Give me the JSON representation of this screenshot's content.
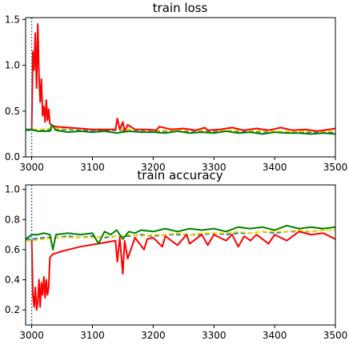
{
  "chart_data": [
    {
      "type": "line",
      "title": "train loss",
      "xlabel": "",
      "ylabel": "",
      "xlim": [
        2990,
        3500
      ],
      "ylim": [
        0.0,
        1.52
      ],
      "xticks": [
        3000,
        3100,
        3200,
        3300,
        3400,
        3500
      ],
      "yticks": [
        0.0,
        0.5,
        1.0,
        1.5
      ],
      "ytick_labels": [
        "0.0",
        "0.5",
        "1.0",
        "1.5"
      ],
      "vline": {
        "x": 3000,
        "color": "#1f77b4",
        "style": "dotted"
      },
      "legend": "none",
      "grid": false,
      "series": [
        {
          "color": "#1f77b4",
          "style": "dashed",
          "x": [
            2990,
            3000,
            3010,
            3030,
            3050,
            3100,
            3150,
            3200,
            3250,
            3300,
            3350,
            3400,
            3450,
            3500
          ],
          "y": [
            0.29,
            0.29,
            0.29,
            0.3,
            0.3,
            0.29,
            0.29,
            0.28,
            0.28,
            0.28,
            0.28,
            0.27,
            0.27,
            0.27
          ]
        },
        {
          "color": "#ffd700",
          "style": "dashed",
          "x": [
            2990,
            3000,
            3010,
            3030,
            3050,
            3100,
            3150,
            3200,
            3250,
            3300,
            3350,
            3400,
            3450,
            3500
          ],
          "y": [
            0.3,
            0.3,
            0.3,
            0.31,
            0.31,
            0.3,
            0.3,
            0.29,
            0.29,
            0.29,
            0.29,
            0.28,
            0.28,
            0.28
          ]
        },
        {
          "color": "#ff0000",
          "style": "solid",
          "x": [
            3000,
            3002,
            3004,
            3006,
            3008,
            3010,
            3012,
            3014,
            3016,
            3018,
            3020,
            3022,
            3024,
            3026,
            3028,
            3030,
            3035,
            3040,
            3060,
            3080,
            3100,
            3120,
            3138,
            3141,
            3145,
            3150,
            3153,
            3158,
            3170,
            3190,
            3205,
            3210,
            3230,
            3250,
            3270,
            3285,
            3290,
            3310,
            3330,
            3350,
            3370,
            3390,
            3410,
            3430,
            3450,
            3470,
            3490,
            3500
          ],
          "y": [
            0.3,
            1.15,
            0.95,
            1.35,
            0.75,
            1.45,
            0.9,
            0.6,
            0.85,
            0.45,
            0.55,
            0.38,
            0.62,
            0.4,
            0.52,
            0.36,
            0.34,
            0.33,
            0.32,
            0.31,
            0.3,
            0.3,
            0.3,
            0.42,
            0.3,
            0.38,
            0.28,
            0.35,
            0.3,
            0.3,
            0.29,
            0.33,
            0.3,
            0.31,
            0.29,
            0.32,
            0.29,
            0.3,
            0.32,
            0.29,
            0.31,
            0.29,
            0.32,
            0.29,
            0.3,
            0.28,
            0.3,
            0.31
          ]
        },
        {
          "color": "#008000",
          "style": "solid",
          "x": [
            2990,
            3000,
            3010,
            3020,
            3030,
            3033,
            3040,
            3060,
            3080,
            3100,
            3120,
            3140,
            3160,
            3180,
            3200,
            3220,
            3240,
            3260,
            3280,
            3300,
            3320,
            3340,
            3360,
            3380,
            3400,
            3420,
            3440,
            3460,
            3480,
            3500
          ],
          "y": [
            0.3,
            0.3,
            0.28,
            0.28,
            0.28,
            0.35,
            0.29,
            0.27,
            0.28,
            0.27,
            0.28,
            0.26,
            0.28,
            0.27,
            0.27,
            0.26,
            0.28,
            0.26,
            0.27,
            0.26,
            0.28,
            0.26,
            0.27,
            0.25,
            0.27,
            0.26,
            0.26,
            0.25,
            0.26,
            0.25
          ]
        }
      ]
    },
    {
      "type": "line",
      "title": "train accuracy",
      "xlabel": "",
      "ylabel": "",
      "xlim": [
        2990,
        3500
      ],
      "ylim": [
        0.1,
        1.03
      ],
      "xticks": [
        3000,
        3100,
        3200,
        3300,
        3400,
        3500
      ],
      "yticks": [
        0.2,
        0.4,
        0.6,
        0.8,
        1.0
      ],
      "ytick_labels": [
        "0.2",
        "0.4",
        "0.6",
        "0.8",
        "1.0"
      ],
      "vline": {
        "x": 3000,
        "color": "#1f77b4",
        "style": "dotted"
      },
      "legend": "none",
      "grid": false,
      "series": [
        {
          "color": "#1f77b4",
          "style": "dashed",
          "x": [
            2990,
            3000,
            3020,
            3040,
            3060,
            3080,
            3100,
            3120,
            3140,
            3160,
            3180,
            3200,
            3220,
            3240,
            3260,
            3280,
            3300,
            3320,
            3340,
            3360,
            3380,
            3400,
            3420,
            3440,
            3460,
            3480,
            3500
          ],
          "y": [
            0.67,
            0.67,
            0.68,
            0.68,
            0.69,
            0.68,
            0.69,
            0.68,
            0.69,
            0.69,
            0.7,
            0.69,
            0.7,
            0.7,
            0.7,
            0.7,
            0.71,
            0.7,
            0.71,
            0.71,
            0.72,
            0.71,
            0.72,
            0.72,
            0.72,
            0.73,
            0.73
          ]
        },
        {
          "color": "#ffd700",
          "style": "dashed",
          "x": [
            2990,
            3000,
            3020,
            3040,
            3060,
            3080,
            3100,
            3120,
            3140,
            3160,
            3180,
            3200,
            3220,
            3240,
            3260,
            3280,
            3300,
            3320,
            3340,
            3360,
            3380,
            3400,
            3420,
            3440,
            3460,
            3480,
            3500
          ],
          "y": [
            0.66,
            0.66,
            0.67,
            0.68,
            0.68,
            0.68,
            0.68,
            0.69,
            0.69,
            0.7,
            0.69,
            0.7,
            0.7,
            0.71,
            0.7,
            0.71,
            0.71,
            0.71,
            0.72,
            0.71,
            0.72,
            0.72,
            0.72,
            0.73,
            0.72,
            0.73,
            0.73
          ]
        },
        {
          "color": "#ff0000",
          "style": "solid",
          "x": [
            3000,
            3002,
            3004,
            3006,
            3008,
            3010,
            3012,
            3014,
            3016,
            3018,
            3020,
            3022,
            3024,
            3026,
            3028,
            3030,
            3035,
            3050,
            3080,
            3110,
            3138,
            3141,
            3145,
            3150,
            3153,
            3158,
            3170,
            3185,
            3190,
            3200,
            3215,
            3220,
            3240,
            3255,
            3260,
            3280,
            3290,
            3300,
            3320,
            3330,
            3340,
            3350,
            3360,
            3370,
            3380,
            3390,
            3400,
            3420,
            3440,
            3460,
            3480,
            3500
          ],
          "y": [
            0.67,
            0.3,
            0.22,
            0.35,
            0.2,
            0.25,
            0.4,
            0.22,
            0.38,
            0.3,
            0.42,
            0.28,
            0.4,
            0.3,
            0.35,
            0.55,
            0.57,
            0.59,
            0.62,
            0.64,
            0.66,
            0.52,
            0.68,
            0.44,
            0.66,
            0.54,
            0.68,
            0.6,
            0.67,
            0.68,
            0.62,
            0.69,
            0.63,
            0.7,
            0.64,
            0.7,
            0.63,
            0.7,
            0.66,
            0.7,
            0.62,
            0.69,
            0.66,
            0.7,
            0.67,
            0.64,
            0.7,
            0.66,
            0.72,
            0.7,
            0.71,
            0.67
          ]
        },
        {
          "color": "#008000",
          "style": "solid",
          "x": [
            2990,
            3000,
            3010,
            3020,
            3030,
            3035,
            3040,
            3060,
            3080,
            3100,
            3110,
            3120,
            3130,
            3140,
            3150,
            3160,
            3170,
            3180,
            3200,
            3220,
            3240,
            3260,
            3280,
            3300,
            3320,
            3340,
            3360,
            3380,
            3400,
            3420,
            3440,
            3460,
            3480,
            3500
          ],
          "y": [
            0.67,
            0.7,
            0.7,
            0.71,
            0.7,
            0.6,
            0.7,
            0.71,
            0.7,
            0.71,
            0.64,
            0.72,
            0.7,
            0.73,
            0.67,
            0.72,
            0.71,
            0.73,
            0.72,
            0.74,
            0.72,
            0.74,
            0.73,
            0.74,
            0.72,
            0.75,
            0.74,
            0.75,
            0.73,
            0.76,
            0.74,
            0.75,
            0.74,
            0.75
          ]
        }
      ]
    }
  ]
}
